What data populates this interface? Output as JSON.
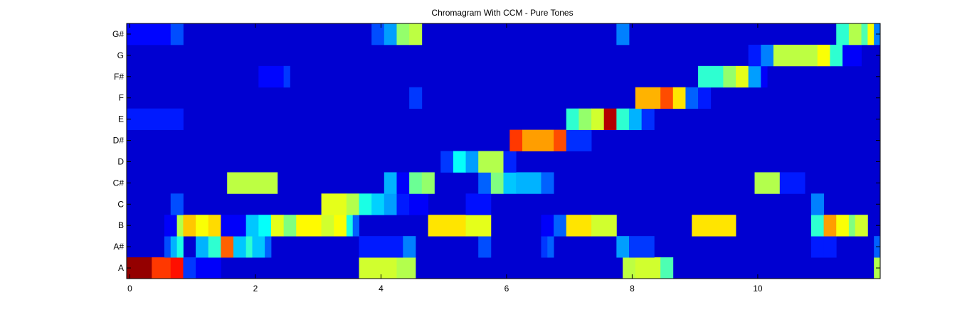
{
  "chart_data": {
    "type": "heatmap",
    "title": "Chromagram With CCM - Pure Tones",
    "xlabel": "",
    "ylabel": "",
    "y_categories": [
      "A",
      "A#",
      "B",
      "C",
      "C#",
      "D",
      "D#",
      "E",
      "F",
      "F#",
      "G",
      "G#"
    ],
    "x_ticks": [
      0,
      2,
      4,
      6,
      8,
      10
    ],
    "x_tick_labels": [
      "0",
      "2",
      "4",
      "6",
      "8",
      "10"
    ],
    "xlim": [
      -0.05,
      11.95
    ],
    "frame_step": 0.1,
    "frames": 120,
    "clim": [
      0,
      1
    ],
    "colormap": "jet",
    "grid": false,
    "background_level": 0.08,
    "segments": [
      {
        "row": "A",
        "x0": -0.05,
        "x1": 0.35,
        "v": 0.98
      },
      {
        "row": "A",
        "x0": 0.35,
        "x1": 0.65,
        "v": 0.82
      },
      {
        "row": "A",
        "x0": 0.65,
        "x1": 0.85,
        "v": 0.86
      },
      {
        "row": "A",
        "x0": 0.85,
        "x1": 1.05,
        "v": 0.18
      },
      {
        "row": "A",
        "x0": 1.05,
        "x1": 1.45,
        "v": 0.12
      },
      {
        "row": "A",
        "x0": 3.65,
        "x1": 4.25,
        "v": 0.58
      },
      {
        "row": "A",
        "x0": 4.25,
        "x1": 4.55,
        "v": 0.55
      },
      {
        "row": "A",
        "x0": 7.85,
        "x1": 8.05,
        "v": 0.56
      },
      {
        "row": "A",
        "x0": 8.05,
        "x1": 8.45,
        "v": 0.58
      },
      {
        "row": "A",
        "x0": 8.45,
        "x1": 8.65,
        "v": 0.45
      },
      {
        "row": "A",
        "x0": 11.85,
        "x1": 11.95,
        "v": 0.55
      },
      {
        "row": "A#",
        "x0": 0.55,
        "x1": 0.65,
        "v": 0.2
      },
      {
        "row": "A#",
        "x0": 0.65,
        "x1": 0.75,
        "v": 0.3
      },
      {
        "row": "A#",
        "x0": 0.75,
        "x1": 0.85,
        "v": 0.4
      },
      {
        "row": "A#",
        "x0": 1.05,
        "x1": 1.25,
        "v": 0.3
      },
      {
        "row": "A#",
        "x0": 1.25,
        "x1": 1.45,
        "v": 0.42
      },
      {
        "row": "A#",
        "x0": 1.45,
        "x1": 1.65,
        "v": 0.78
      },
      {
        "row": "A#",
        "x0": 1.65,
        "x1": 1.85,
        "v": 0.32
      },
      {
        "row": "A#",
        "x0": 1.85,
        "x1": 1.95,
        "v": 0.42
      },
      {
        "row": "A#",
        "x0": 1.95,
        "x1": 2.15,
        "v": 0.32
      },
      {
        "row": "A#",
        "x0": 2.15,
        "x1": 2.25,
        "v": 0.22
      },
      {
        "row": "A#",
        "x0": 3.65,
        "x1": 4.35,
        "v": 0.15
      },
      {
        "row": "A#",
        "x0": 4.35,
        "x1": 4.55,
        "v": 0.25
      },
      {
        "row": "A#",
        "x0": 5.55,
        "x1": 5.75,
        "v": 0.2
      },
      {
        "row": "A#",
        "x0": 6.55,
        "x1": 6.65,
        "v": 0.18
      },
      {
        "row": "A#",
        "x0": 6.65,
        "x1": 6.75,
        "v": 0.22
      },
      {
        "row": "A#",
        "x0": 7.75,
        "x1": 7.95,
        "v": 0.28
      },
      {
        "row": "A#",
        "x0": 7.95,
        "x1": 8.35,
        "v": 0.18
      },
      {
        "row": "A#",
        "x0": 10.85,
        "x1": 11.05,
        "v": 0.15
      },
      {
        "row": "A#",
        "x0": 11.05,
        "x1": 11.25,
        "v": 0.15
      },
      {
        "row": "A#",
        "x0": 11.85,
        "x1": 11.95,
        "v": 0.22
      },
      {
        "row": "B",
        "x0": 0.55,
        "x1": 0.75,
        "v": 0.12
      },
      {
        "row": "B",
        "x0": 0.75,
        "x1": 0.85,
        "v": 0.55
      },
      {
        "row": "B",
        "x0": 0.85,
        "x1": 1.05,
        "v": 0.68
      },
      {
        "row": "B",
        "x0": 1.05,
        "x1": 1.25,
        "v": 0.62
      },
      {
        "row": "B",
        "x0": 1.25,
        "x1": 1.45,
        "v": 0.66
      },
      {
        "row": "B",
        "x0": 1.45,
        "x1": 1.85,
        "v": 0.12
      },
      {
        "row": "B",
        "x0": 1.85,
        "x1": 2.05,
        "v": 0.32
      },
      {
        "row": "B",
        "x0": 2.05,
        "x1": 2.25,
        "v": 0.38
      },
      {
        "row": "B",
        "x0": 2.25,
        "x1": 2.45,
        "v": 0.6
      },
      {
        "row": "B",
        "x0": 2.45,
        "x1": 2.65,
        "v": 0.5
      },
      {
        "row": "B",
        "x0": 2.65,
        "x1": 3.05,
        "v": 0.63
      },
      {
        "row": "B",
        "x0": 3.05,
        "x1": 3.25,
        "v": 0.58
      },
      {
        "row": "B",
        "x0": 3.25,
        "x1": 3.45,
        "v": 0.62
      },
      {
        "row": "B",
        "x0": 3.45,
        "x1": 3.55,
        "v": 0.4
      },
      {
        "row": "B",
        "x0": 3.55,
        "x1": 3.65,
        "v": 0.22
      },
      {
        "row": "B",
        "x0": 4.75,
        "x1": 5.35,
        "v": 0.65
      },
      {
        "row": "B",
        "x0": 5.35,
        "x1": 5.75,
        "v": 0.6
      },
      {
        "row": "B",
        "x0": 6.55,
        "x1": 6.75,
        "v": 0.12
      },
      {
        "row": "B",
        "x0": 6.75,
        "x1": 6.95,
        "v": 0.22
      },
      {
        "row": "B",
        "x0": 6.95,
        "x1": 7.35,
        "v": 0.65
      },
      {
        "row": "B",
        "x0": 7.35,
        "x1": 7.75,
        "v": 0.58
      },
      {
        "row": "B",
        "x0": 8.95,
        "x1": 9.65,
        "v": 0.65
      },
      {
        "row": "B",
        "x0": 10.85,
        "x1": 11.05,
        "v": 0.42
      },
      {
        "row": "B",
        "x0": 11.05,
        "x1": 11.25,
        "v": 0.72
      },
      {
        "row": "B",
        "x0": 11.25,
        "x1": 11.45,
        "v": 0.62
      },
      {
        "row": "B",
        "x0": 11.45,
        "x1": 11.55,
        "v": 0.5
      },
      {
        "row": "B",
        "x0": 11.55,
        "x1": 11.75,
        "v": 0.58
      },
      {
        "row": "C",
        "x0": 0.65,
        "x1": 0.85,
        "v": 0.2
      },
      {
        "row": "C",
        "x0": 3.05,
        "x1": 3.45,
        "v": 0.6
      },
      {
        "row": "C",
        "x0": 3.45,
        "x1": 3.65,
        "v": 0.55
      },
      {
        "row": "C",
        "x0": 3.65,
        "x1": 3.85,
        "v": 0.4
      },
      {
        "row": "C",
        "x0": 3.85,
        "x1": 4.05,
        "v": 0.33
      },
      {
        "row": "C",
        "x0": 4.05,
        "x1": 4.25,
        "v": 0.28
      },
      {
        "row": "C",
        "x0": 4.25,
        "x1": 4.45,
        "v": 0.15
      },
      {
        "row": "C",
        "x0": 4.45,
        "x1": 4.75,
        "v": 0.12
      },
      {
        "row": "C",
        "x0": 5.35,
        "x1": 5.75,
        "v": 0.14
      },
      {
        "row": "C",
        "x0": 10.85,
        "x1": 11.05,
        "v": 0.25
      },
      {
        "row": "C#",
        "x0": 1.55,
        "x1": 2.35,
        "v": 0.56
      },
      {
        "row": "C#",
        "x0": 4.05,
        "x1": 4.25,
        "v": 0.3
      },
      {
        "row": "C#",
        "x0": 4.25,
        "x1": 4.45,
        "v": 0.12
      },
      {
        "row": "C#",
        "x0": 4.45,
        "x1": 4.65,
        "v": 0.48
      },
      {
        "row": "C#",
        "x0": 4.65,
        "x1": 4.85,
        "v": 0.52
      },
      {
        "row": "C#",
        "x0": 5.55,
        "x1": 5.75,
        "v": 0.22
      },
      {
        "row": "C#",
        "x0": 5.75,
        "x1": 5.95,
        "v": 0.5
      },
      {
        "row": "C#",
        "x0": 5.95,
        "x1": 6.15,
        "v": 0.32
      },
      {
        "row": "C#",
        "x0": 6.15,
        "x1": 6.55,
        "v": 0.3
      },
      {
        "row": "C#",
        "x0": 6.55,
        "x1": 6.75,
        "v": 0.22
      },
      {
        "row": "C#",
        "x0": 9.95,
        "x1": 10.35,
        "v": 0.55
      },
      {
        "row": "C#",
        "x0": 10.35,
        "x1": 10.75,
        "v": 0.15
      },
      {
        "row": "D",
        "x0": 4.95,
        "x1": 5.15,
        "v": 0.18
      },
      {
        "row": "D",
        "x0": 5.15,
        "x1": 5.35,
        "v": 0.38
      },
      {
        "row": "D",
        "x0": 5.35,
        "x1": 5.55,
        "v": 0.28
      },
      {
        "row": "D",
        "x0": 5.55,
        "x1": 5.95,
        "v": 0.55
      },
      {
        "row": "D",
        "x0": 5.95,
        "x1": 6.15,
        "v": 0.16
      },
      {
        "row": "D#",
        "x0": 6.05,
        "x1": 6.25,
        "v": 0.82
      },
      {
        "row": "D#",
        "x0": 6.25,
        "x1": 6.75,
        "v": 0.72
      },
      {
        "row": "D#",
        "x0": 6.75,
        "x1": 6.95,
        "v": 0.8
      },
      {
        "row": "D#",
        "x0": 6.95,
        "x1": 7.35,
        "v": 0.17
      },
      {
        "row": "E",
        "x0": -0.05,
        "x1": 0.85,
        "v": 0.15
      },
      {
        "row": "E",
        "x0": 6.95,
        "x1": 7.15,
        "v": 0.42
      },
      {
        "row": "E",
        "x0": 7.15,
        "x1": 7.35,
        "v": 0.52
      },
      {
        "row": "E",
        "x0": 7.35,
        "x1": 7.55,
        "v": 0.58
      },
      {
        "row": "E",
        "x0": 7.55,
        "x1": 7.75,
        "v": 0.95
      },
      {
        "row": "E",
        "x0": 7.75,
        "x1": 7.95,
        "v": 0.42
      },
      {
        "row": "E",
        "x0": 7.95,
        "x1": 8.15,
        "v": 0.3
      },
      {
        "row": "E",
        "x0": 8.15,
        "x1": 8.35,
        "v": 0.17
      },
      {
        "row": "F",
        "x0": 8.05,
        "x1": 8.45,
        "v": 0.7
      },
      {
        "row": "F",
        "x0": 8.45,
        "x1": 8.65,
        "v": 0.8
      },
      {
        "row": "F",
        "x0": 8.65,
        "x1": 8.85,
        "v": 0.65
      },
      {
        "row": "F",
        "x0": 8.85,
        "x1": 9.05,
        "v": 0.22
      },
      {
        "row": "F",
        "x0": 9.05,
        "x1": 9.25,
        "v": 0.15
      },
      {
        "row": "F",
        "x0": 4.45,
        "x1": 4.65,
        "v": 0.18
      },
      {
        "row": "F#",
        "x0": 2.05,
        "x1": 2.45,
        "v": 0.13
      },
      {
        "row": "F#",
        "x0": 2.45,
        "x1": 2.55,
        "v": 0.18
      },
      {
        "row": "F#",
        "x0": 9.05,
        "x1": 9.45,
        "v": 0.42
      },
      {
        "row": "F#",
        "x0": 9.45,
        "x1": 9.65,
        "v": 0.52
      },
      {
        "row": "F#",
        "x0": 9.65,
        "x1": 9.85,
        "v": 0.6
      },
      {
        "row": "F#",
        "x0": 9.85,
        "x1": 10.05,
        "v": 0.28
      },
      {
        "row": "F#",
        "x0": 10.05,
        "x1": 10.15,
        "v": 0.12
      },
      {
        "row": "G",
        "x0": 9.85,
        "x1": 10.05,
        "v": 0.15
      },
      {
        "row": "G",
        "x0": 10.05,
        "x1": 10.25,
        "v": 0.25
      },
      {
        "row": "G",
        "x0": 10.25,
        "x1": 10.95,
        "v": 0.56
      },
      {
        "row": "G",
        "x0": 10.95,
        "x1": 11.15,
        "v": 0.62
      },
      {
        "row": "G",
        "x0": 11.15,
        "x1": 11.35,
        "v": 0.42
      },
      {
        "row": "G",
        "x0": 11.35,
        "x1": 11.65,
        "v": 0.12
      },
      {
        "row": "G#",
        "x0": -0.05,
        "x1": 0.65,
        "v": 0.13
      },
      {
        "row": "G#",
        "x0": 0.65,
        "x1": 0.85,
        "v": 0.2
      },
      {
        "row": "G#",
        "x0": 3.85,
        "x1": 4.05,
        "v": 0.2
      },
      {
        "row": "G#",
        "x0": 4.05,
        "x1": 4.25,
        "v": 0.28
      },
      {
        "row": "G#",
        "x0": 4.25,
        "x1": 4.45,
        "v": 0.52
      },
      {
        "row": "G#",
        "x0": 4.45,
        "x1": 4.65,
        "v": 0.56
      },
      {
        "row": "G#",
        "x0": 7.75,
        "x1": 7.95,
        "v": 0.25
      },
      {
        "row": "G#",
        "x0": 11.25,
        "x1": 11.45,
        "v": 0.42
      },
      {
        "row": "G#",
        "x0": 11.45,
        "x1": 11.65,
        "v": 0.55
      },
      {
        "row": "G#",
        "x0": 11.65,
        "x1": 11.75,
        "v": 0.45
      },
      {
        "row": "G#",
        "x0": 11.75,
        "x1": 11.85,
        "v": 0.62
      },
      {
        "row": "G#",
        "x0": 11.85,
        "x1": 11.95,
        "v": 0.25
      }
    ]
  }
}
